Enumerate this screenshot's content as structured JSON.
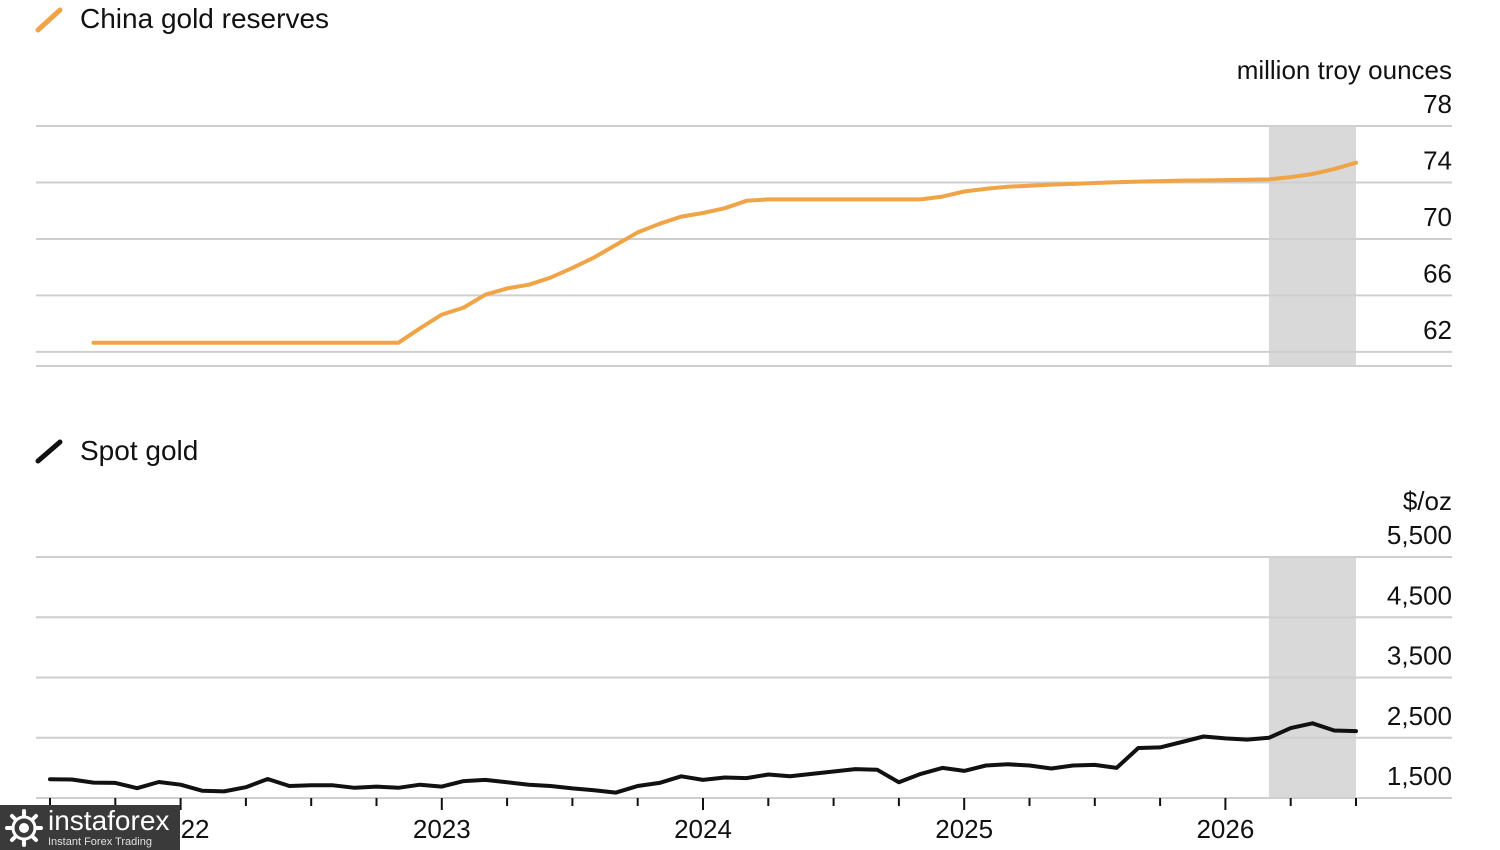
{
  "chart_data": [
    {
      "type": "line",
      "title": "China gold reserves",
      "unit": "million troy ounces",
      "color": "#F0A448",
      "yticks": [
        "78",
        "74",
        "70",
        "66",
        "62"
      ],
      "ytick_values": [
        78,
        74,
        70,
        66,
        62
      ],
      "ylim": [
        61,
        78
      ],
      "xlim": [
        "2021-07",
        "2026-07"
      ],
      "highlight_range": [
        "2026-03",
        "2026-07"
      ],
      "grid": true,
      "series": [
        {
          "name": "China gold reserves",
          "x": [
            "2021-09",
            "2021-10",
            "2021-11",
            "2021-12",
            "2022-01",
            "2022-02",
            "2022-03",
            "2022-04",
            "2022-05",
            "2022-06",
            "2022-07",
            "2022-08",
            "2022-09",
            "2022-10",
            "2022-11",
            "2022-12",
            "2023-01",
            "2023-02",
            "2023-03",
            "2023-04",
            "2023-05",
            "2023-06",
            "2023-07",
            "2023-08",
            "2023-09",
            "2023-10",
            "2023-11",
            "2023-12",
            "2024-01",
            "2024-02",
            "2024-03",
            "2024-04",
            "2024-05",
            "2024-06",
            "2024-07",
            "2024-08",
            "2024-09",
            "2024-10",
            "2024-11",
            "2024-12",
            "2025-01",
            "2025-02",
            "2025-03",
            "2025-04",
            "2025-05",
            "2025-06",
            "2025-07",
            "2025-08",
            "2025-09",
            "2025-10",
            "2025-11",
            "2025-12",
            "2026-01",
            "2026-02",
            "2026-03",
            "2026-04",
            "2026-05",
            "2026-06",
            "2026-07"
          ],
          "values": [
            62.64,
            62.64,
            62.64,
            62.64,
            62.64,
            62.64,
            62.64,
            62.64,
            62.64,
            62.64,
            62.64,
            62.64,
            62.64,
            62.64,
            62.64,
            63.67,
            64.64,
            65.14,
            66.05,
            66.5,
            66.76,
            67.26,
            67.95,
            68.69,
            69.58,
            70.46,
            71.07,
            71.58,
            71.84,
            72.18,
            72.7,
            72.8,
            72.8,
            72.8,
            72.8,
            72.8,
            72.8,
            72.8,
            72.8,
            73.0,
            73.36,
            73.55,
            73.7,
            73.77,
            73.85,
            73.9,
            73.96,
            74.02,
            74.06,
            74.1,
            74.13,
            74.15,
            74.17,
            74.19,
            74.22,
            74.38,
            74.6,
            74.95,
            75.4
          ]
        }
      ]
    },
    {
      "type": "line",
      "title": "Spot gold",
      "unit": "$/oz",
      "color": "#111111",
      "yticks": [
        "5,500",
        "4,500",
        "3,500",
        "2,500",
        "1,500"
      ],
      "ytick_values": [
        5500,
        4500,
        3500,
        2500,
        1500
      ],
      "ylim": [
        1500,
        5500
      ],
      "xlim": [
        "2021-07",
        "2026-07"
      ],
      "xticks": [
        "2022",
        "2023",
        "2024",
        "2025",
        "2026"
      ],
      "highlight_range": [
        "2026-03",
        "2026-07"
      ],
      "grid": true,
      "series": [
        {
          "name": "Spot gold",
          "x": [
            "2021-07",
            "2021-08",
            "2021-09",
            "2021-10",
            "2021-11",
            "2021-12",
            "2022-01",
            "2022-02",
            "2022-03",
            "2022-04",
            "2022-05",
            "2022-06",
            "2022-07",
            "2022-08",
            "2022-09",
            "2022-10",
            "2022-11",
            "2022-12",
            "2023-01",
            "2023-02",
            "2023-03",
            "2023-04",
            "2023-05",
            "2023-06",
            "2023-07",
            "2023-08",
            "2023-09",
            "2023-10",
            "2023-11",
            "2023-12",
            "2024-01",
            "2024-02",
            "2024-03",
            "2024-04",
            "2024-05",
            "2024-06",
            "2024-07",
            "2024-08",
            "2024-09",
            "2024-10",
            "2024-11",
            "2024-12",
            "2025-01",
            "2025-02",
            "2025-03",
            "2025-04",
            "2025-05",
            "2025-06",
            "2025-07",
            "2025-08",
            "2025-09",
            "2025-10",
            "2025-11",
            "2025-12",
            "2026-01",
            "2026-02",
            "2026-03",
            "2026-04",
            "2026-05",
            "2026-06",
            "2026-07"
          ],
          "values": [
            1812,
            1807,
            1755,
            1750,
            1662,
            1765,
            1720,
            1620,
            1610,
            1680,
            1815,
            1700,
            1710,
            1710,
            1670,
            1690,
            1670,
            1720,
            1690,
            1780,
            1800,
            1760,
            1720,
            1700,
            1660,
            1630,
            1590,
            1700,
            1750,
            1860,
            1800,
            1840,
            1830,
            1890,
            1860,
            1900,
            1940,
            1980,
            1970,
            1760,
            1900,
            2000,
            1950,
            2040,
            2060,
            2040,
            1990,
            2040,
            2050,
            2000,
            2330,
            2340,
            2430,
            2520,
            2490,
            2470,
            2500,
            2660,
            2740,
            2620,
            2610
          ]
        }
      ]
    }
  ],
  "watermark": {
    "name": "instaforex",
    "tagline": "Instant Forex Trading"
  }
}
